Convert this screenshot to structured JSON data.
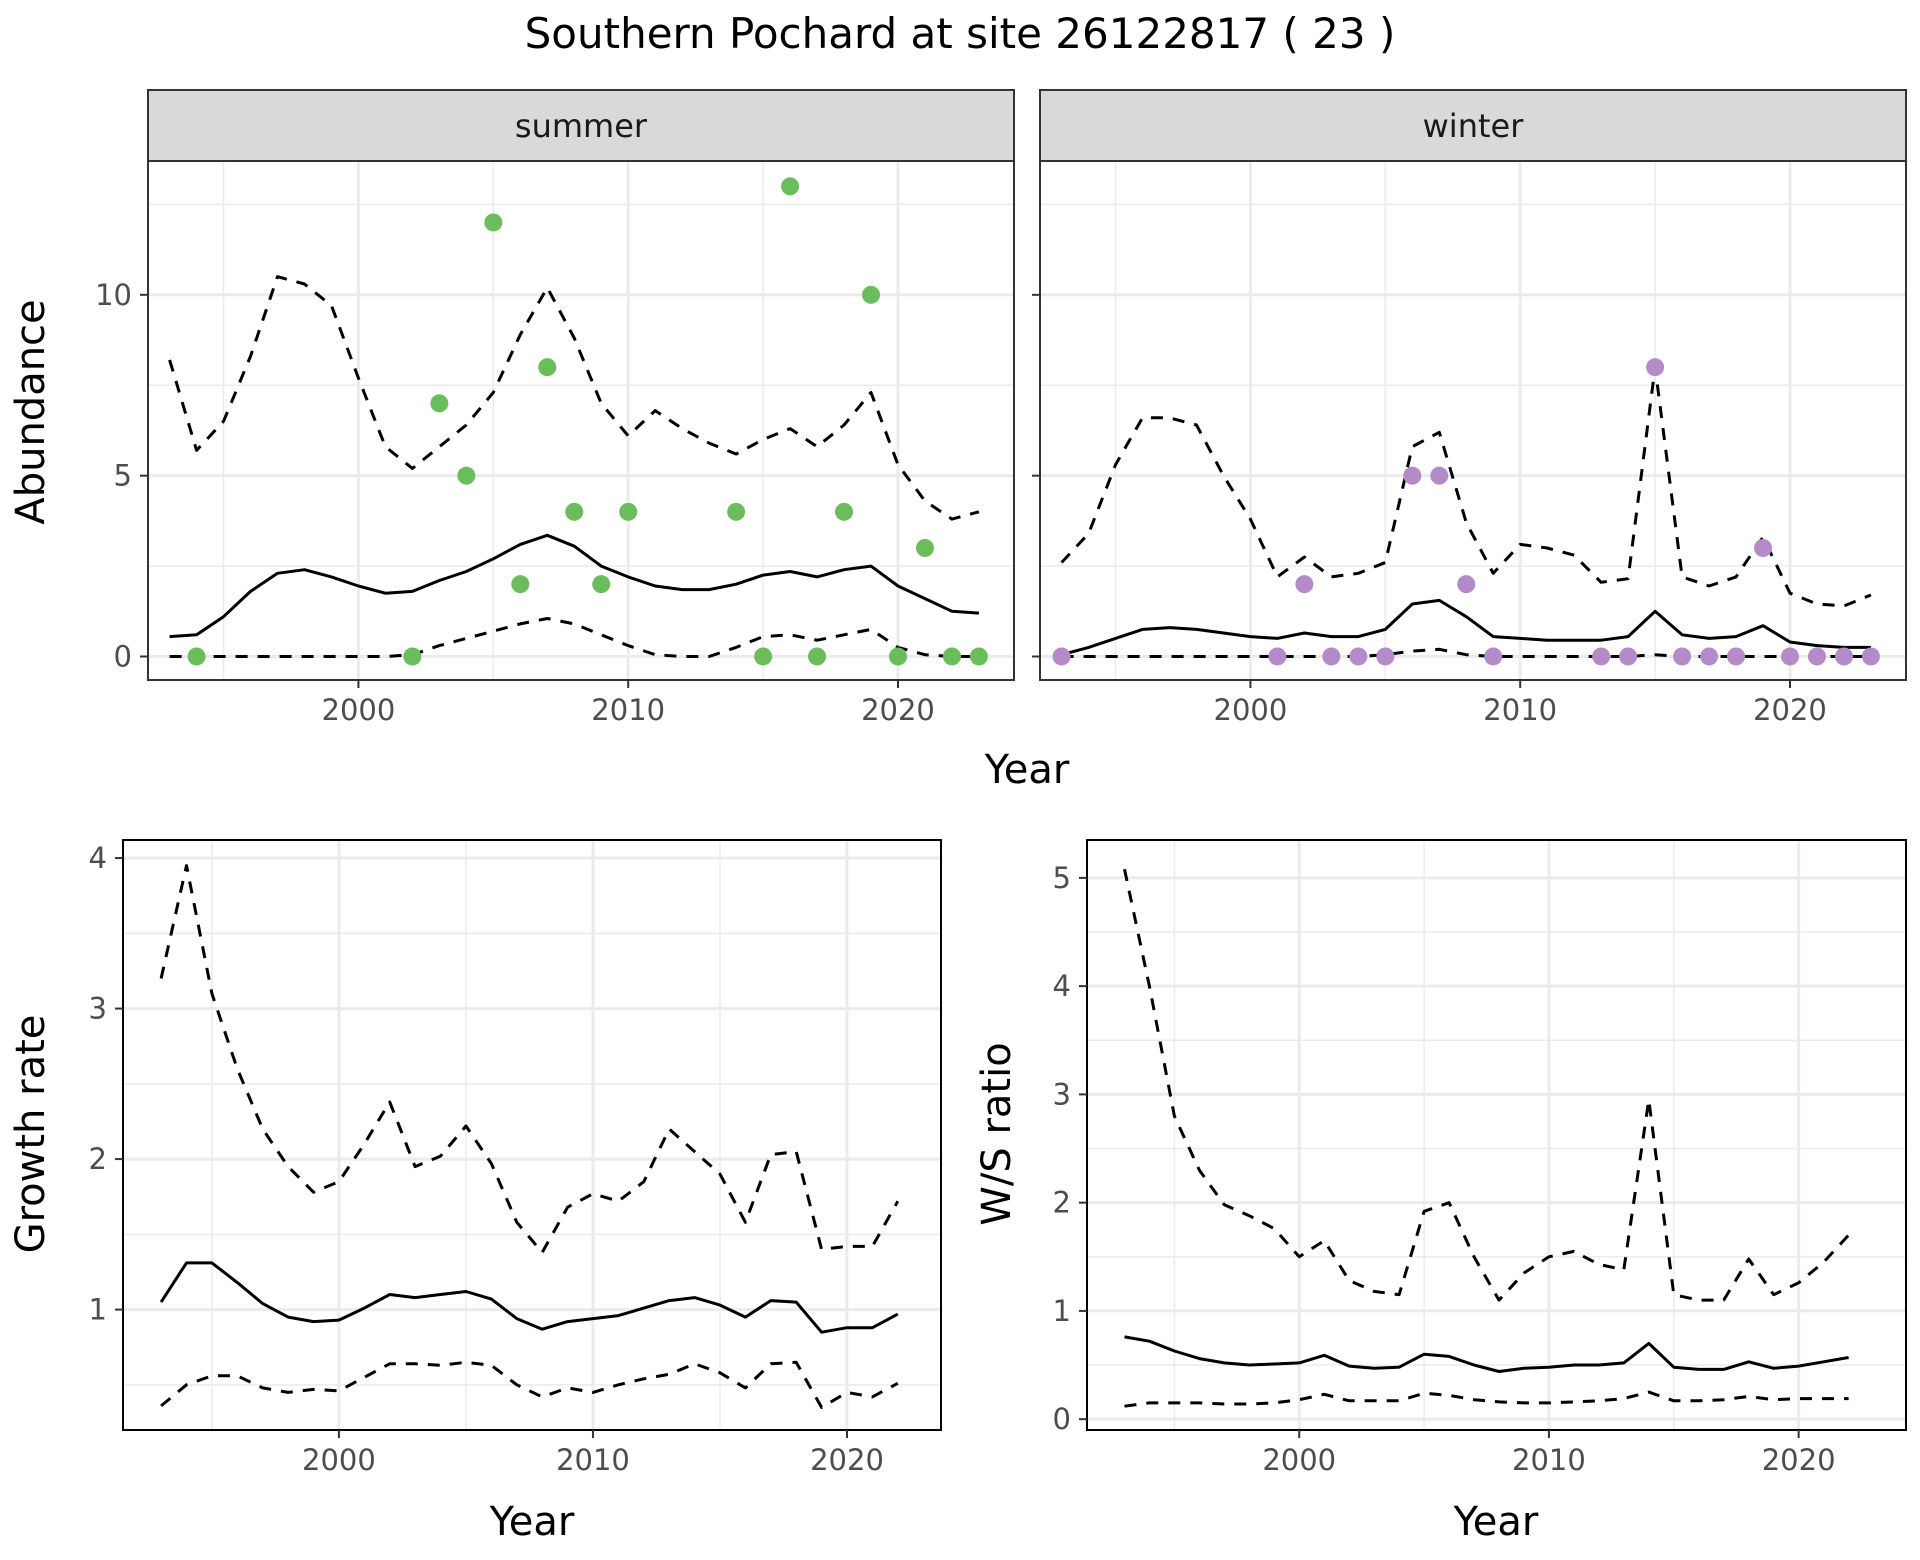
{
  "title": "Southern Pochard at site 26122817 ( 23 )",
  "colors": {
    "summer_points": "#6bbd5b",
    "winter_points": "#b48ac8",
    "line": "#000000",
    "grid": "#ebebeb",
    "strip": "#d9d9d9"
  },
  "chart_data": [
    {
      "type": "line",
      "facet": "summer",
      "xlabel": "Year",
      "ylabel": "Abundance",
      "xlim": [
        1992.2,
        2024.3
      ],
      "ylim": [
        -0.65,
        13.7
      ],
      "xticks": [
        2000,
        2010,
        2020
      ],
      "yticks": [
        0,
        5,
        10
      ],
      "grid": true,
      "points": {
        "x": [
          1994,
          2002,
          2003,
          2004,
          2005,
          2006,
          2007,
          2008,
          2009,
          2010,
          2014,
          2015,
          2016,
          2017,
          2018,
          2019,
          2020,
          2021,
          2022,
          2023
        ],
        "y": [
          0,
          0,
          7,
          5,
          12,
          2,
          8,
          4,
          2,
          4,
          4,
          0,
          13,
          0,
          4,
          10,
          0,
          3,
          0,
          0
        ]
      },
      "series": [
        {
          "style": "solid",
          "x": [
            1993,
            1994,
            1995,
            1996,
            1997,
            1998,
            1999,
            2000,
            2001,
            2002,
            2003,
            2004,
            2005,
            2006,
            2007,
            2008,
            2009,
            2010,
            2011,
            2012,
            2013,
            2014,
            2015,
            2016,
            2017,
            2018,
            2019,
            2020,
            2021,
            2022,
            2023
          ],
          "y": [
            0.55,
            0.6,
            1.1,
            1.8,
            2.3,
            2.4,
            2.2,
            1.95,
            1.75,
            1.8,
            2.1,
            2.35,
            2.7,
            3.1,
            3.35,
            3.05,
            2.5,
            2.2,
            1.95,
            1.85,
            1.85,
            2.0,
            2.25,
            2.35,
            2.2,
            2.4,
            2.5,
            1.95,
            1.6,
            1.25,
            1.2
          ]
        },
        {
          "style": "dashed",
          "x": [
            1993,
            1994,
            1995,
            1996,
            1997,
            1998,
            1999,
            2000,
            2001,
            2002,
            2003,
            2004,
            2005,
            2006,
            2007,
            2008,
            2009,
            2010,
            2011,
            2012,
            2013,
            2014,
            2015,
            2016,
            2017,
            2018,
            2019,
            2020,
            2021,
            2022,
            2023
          ],
          "y": [
            8.2,
            5.7,
            6.5,
            8.3,
            10.5,
            10.3,
            9.7,
            7.7,
            5.8,
            5.2,
            5.8,
            6.4,
            7.3,
            8.9,
            10.2,
            8.8,
            7.0,
            6.1,
            6.8,
            6.3,
            5.9,
            5.6,
            6.0,
            6.3,
            5.8,
            6.4,
            7.3,
            5.3,
            4.3,
            3.8,
            4.0
          ]
        },
        {
          "style": "dashed",
          "x": [
            1993,
            1994,
            1995,
            1996,
            1997,
            1998,
            1999,
            2000,
            2001,
            2002,
            2003,
            2004,
            2005,
            2006,
            2007,
            2008,
            2009,
            2010,
            2011,
            2012,
            2013,
            2014,
            2015,
            2016,
            2017,
            2018,
            2019,
            2020,
            2021,
            2022,
            2023
          ],
          "y": [
            0,
            0,
            0,
            0,
            0,
            0,
            0,
            0,
            0,
            0.05,
            0.3,
            0.5,
            0.7,
            0.9,
            1.05,
            0.9,
            0.6,
            0.3,
            0.05,
            0,
            0,
            0.25,
            0.55,
            0.6,
            0.45,
            0.6,
            0.75,
            0.25,
            0.05,
            0,
            0
          ]
        }
      ]
    },
    {
      "type": "line",
      "facet": "winter",
      "xlabel": "Year",
      "ylabel": "Abundance",
      "xlim": [
        1992.2,
        2024.3
      ],
      "ylim": [
        -0.65,
        13.7
      ],
      "xticks": [
        2000,
        2010,
        2020
      ],
      "yticks": [
        0,
        5,
        10
      ],
      "grid": true,
      "points": {
        "x": [
          1993,
          2001,
          2002,
          2003,
          2004,
          2005,
          2006,
          2007,
          2008,
          2009,
          2013,
          2014,
          2015,
          2016,
          2017,
          2018,
          2019,
          2020,
          2021,
          2022,
          2023
        ],
        "y": [
          0,
          0,
          2,
          0,
          0,
          0,
          5,
          5,
          2,
          0,
          0,
          0,
          8,
          0,
          0,
          0,
          3,
          0,
          0,
          0,
          0
        ]
      },
      "series": [
        {
          "style": "solid",
          "x": [
            1993,
            1994,
            1995,
            1996,
            1997,
            1998,
            1999,
            2000,
            2001,
            2002,
            2003,
            2004,
            2005,
            2006,
            2007,
            2008,
            2009,
            2010,
            2011,
            2012,
            2013,
            2014,
            2015,
            2016,
            2017,
            2018,
            2019,
            2020,
            2021,
            2022,
            2023
          ],
          "y": [
            0.05,
            0.25,
            0.5,
            0.75,
            0.8,
            0.75,
            0.65,
            0.55,
            0.5,
            0.65,
            0.55,
            0.55,
            0.75,
            1.45,
            1.55,
            1.1,
            0.55,
            0.5,
            0.45,
            0.45,
            0.45,
            0.55,
            1.25,
            0.6,
            0.5,
            0.55,
            0.85,
            0.4,
            0.3,
            0.25,
            0.25
          ]
        },
        {
          "style": "dashed",
          "x": [
            1993,
            1994,
            1995,
            1996,
            1997,
            1998,
            1999,
            2000,
            2001,
            2002,
            2003,
            2004,
            2005,
            2006,
            2007,
            2008,
            2009,
            2010,
            2011,
            2012,
            2013,
            2014,
            2015,
            2016,
            2017,
            2018,
            2019,
            2020,
            2021,
            2022,
            2023
          ],
          "y": [
            2.6,
            3.4,
            5.3,
            6.6,
            6.6,
            6.4,
            5.0,
            3.8,
            2.2,
            2.75,
            2.2,
            2.3,
            2.6,
            5.8,
            6.2,
            3.7,
            2.3,
            3.1,
            3.0,
            2.8,
            2.05,
            2.15,
            8.0,
            2.2,
            1.95,
            2.2,
            3.3,
            1.75,
            1.45,
            1.4,
            1.7
          ]
        },
        {
          "style": "dashed",
          "x": [
            1993,
            1994,
            1995,
            1996,
            1997,
            1998,
            1999,
            2000,
            2001,
            2002,
            2003,
            2004,
            2005,
            2006,
            2007,
            2008,
            2009,
            2010,
            2011,
            2012,
            2013,
            2014,
            2015,
            2016,
            2017,
            2018,
            2019,
            2020,
            2021,
            2022,
            2023
          ],
          "y": [
            0,
            0,
            0,
            0,
            0,
            0,
            0,
            0,
            0,
            0,
            0,
            0,
            0.05,
            0.15,
            0.2,
            0.05,
            0,
            0,
            0,
            0,
            0,
            0,
            0.05,
            0,
            0,
            0,
            0,
            0,
            0,
            0,
            0
          ]
        }
      ]
    },
    {
      "type": "line",
      "xlabel": "Year",
      "ylabel": "Growth rate",
      "xlim": [
        1991.5,
        2023.7
      ],
      "ylim": [
        0.2,
        4.12
      ],
      "xticks": [
        2000,
        2010,
        2020
      ],
      "yticks": [
        1,
        2,
        3,
        4
      ],
      "grid": true,
      "series": [
        {
          "style": "solid",
          "x": [
            1993,
            1994,
            1995,
            1996,
            1997,
            1998,
            1999,
            2000,
            2001,
            2002,
            2003,
            2004,
            2005,
            2006,
            2007,
            2008,
            2009,
            2010,
            2011,
            2012,
            2013,
            2014,
            2015,
            2016,
            2017,
            2018,
            2019,
            2020,
            2021,
            2022
          ],
          "y": [
            1.05,
            1.31,
            1.31,
            1.18,
            1.04,
            0.95,
            0.92,
            0.93,
            1.01,
            1.1,
            1.08,
            1.1,
            1.12,
            1.07,
            0.94,
            0.87,
            0.92,
            0.94,
            0.96,
            1.01,
            1.06,
            1.08,
            1.03,
            0.95,
            1.06,
            1.05,
            0.85,
            0.88,
            0.88,
            0.97
          ]
        },
        {
          "style": "dashed",
          "x": [
            1993,
            1994,
            1995,
            1996,
            1997,
            1998,
            1999,
            2000,
            2001,
            2002,
            2003,
            2004,
            2005,
            2006,
            2007,
            2008,
            2009,
            2010,
            2011,
            2012,
            2013,
            2014,
            2015,
            2016,
            2017,
            2018,
            2019,
            2020,
            2021,
            2022
          ],
          "y": [
            3.2,
            3.95,
            3.1,
            2.6,
            2.2,
            1.95,
            1.78,
            1.85,
            2.1,
            2.38,
            1.95,
            2.02,
            2.22,
            1.97,
            1.58,
            1.38,
            1.68,
            1.77,
            1.72,
            1.85,
            2.2,
            2.05,
            1.9,
            1.58,
            2.03,
            2.05,
            1.4,
            1.42,
            1.42,
            1.72
          ]
        },
        {
          "style": "dashed",
          "x": [
            1993,
            1994,
            1995,
            1996,
            1997,
            1998,
            1999,
            2000,
            2001,
            2002,
            2003,
            2004,
            2005,
            2006,
            2007,
            2008,
            2009,
            2010,
            2011,
            2012,
            2013,
            2014,
            2015,
            2016,
            2017,
            2018,
            2019,
            2020,
            2021,
            2022
          ],
          "y": [
            0.36,
            0.5,
            0.56,
            0.56,
            0.48,
            0.45,
            0.47,
            0.46,
            0.55,
            0.64,
            0.64,
            0.63,
            0.65,
            0.63,
            0.5,
            0.42,
            0.48,
            0.45,
            0.5,
            0.54,
            0.57,
            0.64,
            0.58,
            0.48,
            0.64,
            0.65,
            0.35,
            0.45,
            0.42,
            0.51
          ]
        }
      ]
    },
    {
      "type": "line",
      "xlabel": "Year",
      "ylabel": "W/S ratio",
      "xlim": [
        1991.5,
        2024.3
      ],
      "ylim": [
        -0.1,
        5.35
      ],
      "xticks": [
        2000,
        2010,
        2020
      ],
      "yticks": [
        0,
        1,
        2,
        3,
        4,
        5
      ],
      "grid": true,
      "series": [
        {
          "style": "solid",
          "x": [
            1993,
            1994,
            1995,
            1996,
            1997,
            1998,
            1999,
            2000,
            2001,
            2002,
            2003,
            2004,
            2005,
            2006,
            2007,
            2008,
            2009,
            2010,
            2011,
            2012,
            2013,
            2014,
            2015,
            2016,
            2017,
            2018,
            2019,
            2020,
            2021,
            2022
          ],
          "y": [
            0.76,
            0.72,
            0.63,
            0.56,
            0.52,
            0.5,
            0.51,
            0.52,
            0.59,
            0.49,
            0.47,
            0.48,
            0.6,
            0.58,
            0.5,
            0.44,
            0.47,
            0.48,
            0.5,
            0.5,
            0.52,
            0.7,
            0.48,
            0.46,
            0.46,
            0.53,
            0.47,
            0.49,
            0.53,
            0.57
          ]
        },
        {
          "style": "dashed",
          "x": [
            1993,
            1994,
            1995,
            1996,
            1997,
            1998,
            1999,
            2000,
            2001,
            2002,
            2003,
            2004,
            2005,
            2006,
            2007,
            2008,
            2009,
            2010,
            2011,
            2012,
            2013,
            2014,
            2015,
            2016,
            2017,
            2018,
            2019,
            2020,
            2021,
            2022
          ],
          "y": [
            5.08,
            4.0,
            2.8,
            2.3,
            1.98,
            1.88,
            1.76,
            1.5,
            1.65,
            1.28,
            1.18,
            1.15,
            1.92,
            2.0,
            1.5,
            1.1,
            1.35,
            1.5,
            1.55,
            1.43,
            1.38,
            2.95,
            1.15,
            1.1,
            1.1,
            1.48,
            1.15,
            1.26,
            1.45,
            1.7
          ]
        },
        {
          "style": "dashed",
          "x": [
            1993,
            1994,
            1995,
            1996,
            1997,
            1998,
            1999,
            2000,
            2001,
            2002,
            2003,
            2004,
            2005,
            2006,
            2007,
            2008,
            2009,
            2010,
            2011,
            2012,
            2013,
            2014,
            2015,
            2016,
            2017,
            2018,
            2019,
            2020,
            2021,
            2022
          ],
          "y": [
            0.12,
            0.15,
            0.15,
            0.15,
            0.14,
            0.14,
            0.15,
            0.18,
            0.23,
            0.17,
            0.17,
            0.17,
            0.24,
            0.22,
            0.18,
            0.16,
            0.15,
            0.15,
            0.16,
            0.17,
            0.19,
            0.25,
            0.17,
            0.17,
            0.18,
            0.21,
            0.18,
            0.19,
            0.19,
            0.19
          ]
        }
      ]
    }
  ],
  "strips": {
    "summer": "summer",
    "winter": "winter"
  }
}
